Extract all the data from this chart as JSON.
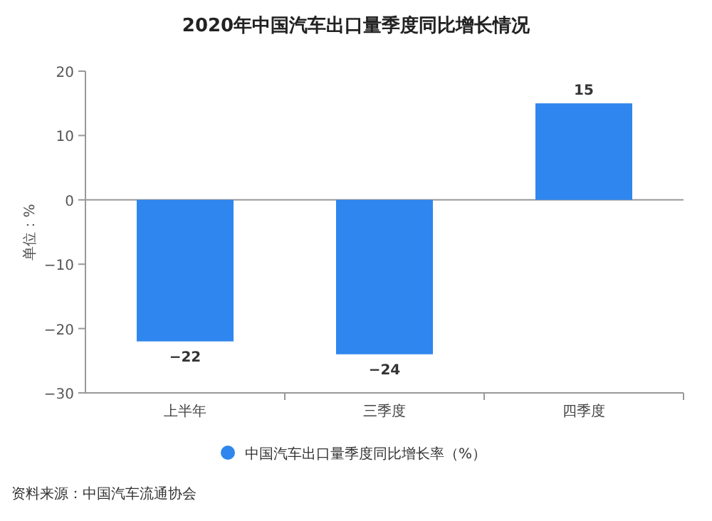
{
  "chart_data": {
    "type": "bar",
    "title": "2020年中国汽车出口量季度同比增长情况",
    "ylabel": "单位：%",
    "categories": [
      "上半年",
      "三季度",
      "四季度"
    ],
    "series": [
      {
        "name": "中国汽车出口量季度同比增长率（%）",
        "color": "#2f86ee",
        "values": [
          -22,
          -24,
          15
        ]
      }
    ],
    "ylim": [
      -30,
      20
    ],
    "yticks": [
      -30,
      -20,
      -10,
      0,
      10,
      20
    ],
    "grid": false,
    "ref_lines": [
      {
        "axis": "y",
        "value": 0,
        "color": "#999999"
      }
    ],
    "legend": "bottom",
    "data_labels": true,
    "annotations": [
      "资料来源：中国汽车流通协会"
    ]
  }
}
